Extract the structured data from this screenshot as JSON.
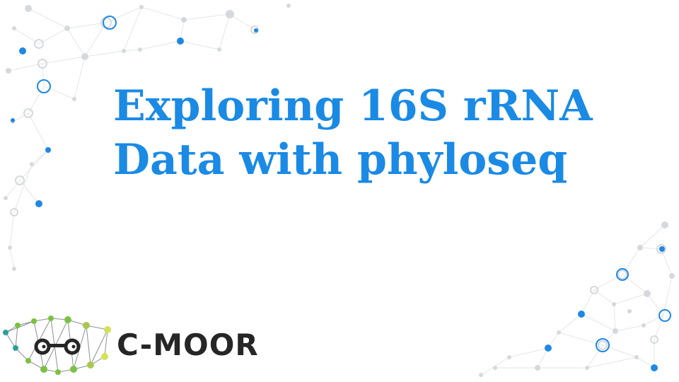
{
  "slide": {
    "title_line1": "Exploring 16S rRNA",
    "title_line2": "Data with phyloseq"
  },
  "logo": {
    "text": "C-MOOR",
    "icon": "network-binoculars-icon"
  },
  "colors": {
    "title": "#1a8ae5",
    "logo_text": "#262626",
    "node_blue": "#1e88e5",
    "node_grey": "#d0d4d8",
    "logo_green": "#7cc142",
    "logo_teal": "#2aa198",
    "logo_yellow": "#d4e157"
  }
}
